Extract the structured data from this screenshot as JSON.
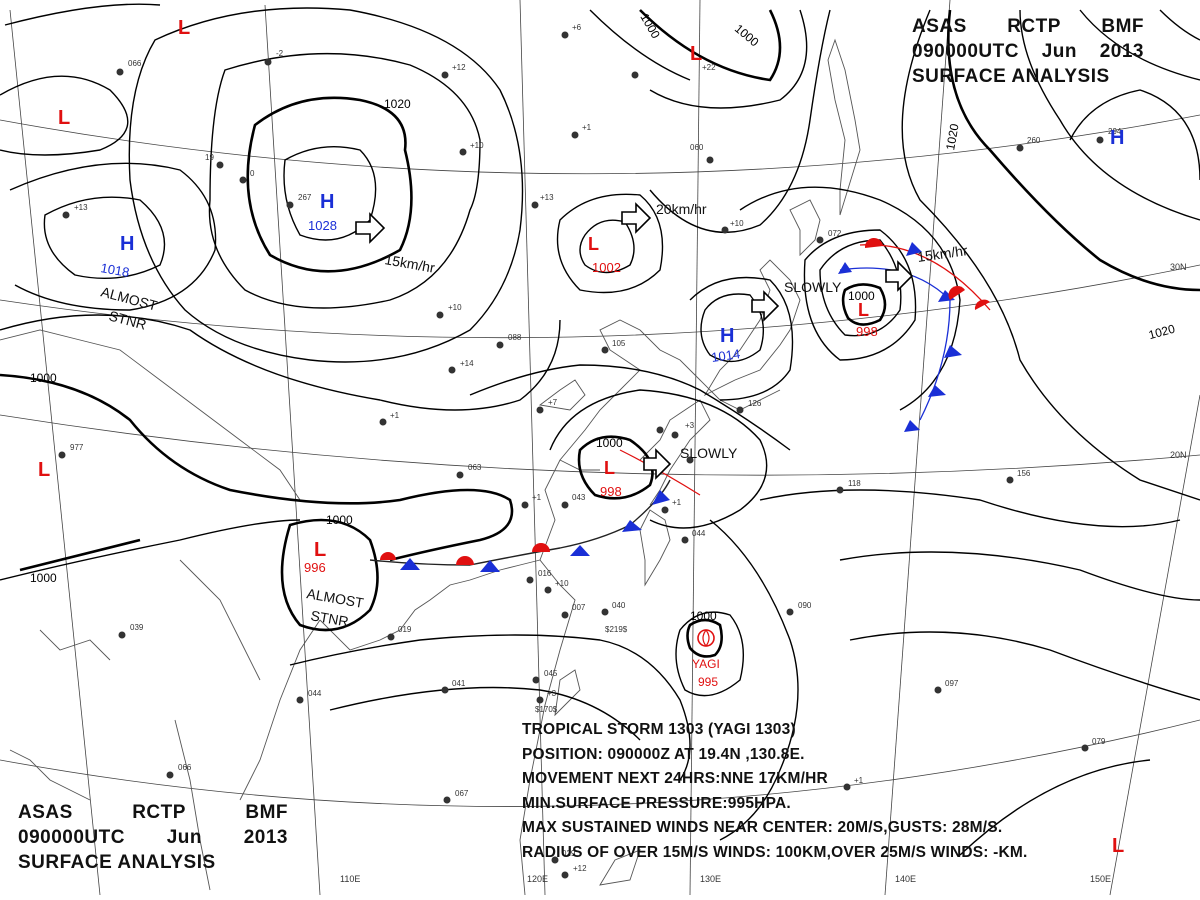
{
  "header": {
    "agency_codes": [
      "ASAS",
      "RCTP",
      "BMF"
    ],
    "time": "090000UTC",
    "month": "Jun",
    "year": "2013",
    "title": "SURFACE ANALYSIS"
  },
  "lat_labels": [
    "30N",
    "20N"
  ],
  "lon_labels": [
    "110E",
    "120E",
    "130E",
    "140E",
    "150E"
  ],
  "pressure_centers": [
    {
      "type": "L",
      "value": ""
    },
    {
      "type": "L",
      "value": ""
    },
    {
      "type": "L",
      "value": ""
    },
    {
      "type": "L",
      "value": ""
    },
    {
      "type": "L",
      "value": ""
    },
    {
      "type": "H",
      "value": "1028"
    },
    {
      "type": "H",
      "value": "1018"
    },
    {
      "type": "L",
      "value": "1002"
    },
    {
      "type": "H",
      "value": "1014"
    },
    {
      "type": "L",
      "value": "998"
    },
    {
      "type": "L",
      "value": "998"
    },
    {
      "type": "L",
      "value": "996"
    },
    {
      "type": "H",
      "value": ""
    },
    {
      "type": "L",
      "value": ""
    }
  ],
  "isobar_labels": [
    "1020",
    "1020",
    "1020",
    "1000",
    "1000",
    "1000",
    "1000",
    "1000",
    "1000",
    "1000",
    "1000"
  ],
  "motion_labels": [
    "15km/hr",
    "20km/hr",
    "15km/hr",
    "SLOWLY",
    "SLOWLY",
    "ALMOST",
    "STNR",
    "ALMOST",
    "STNR"
  ],
  "typhoon": {
    "name": "YAGI",
    "value": "995"
  },
  "storm_info": {
    "line1": "TROPICAL STORM 1303 (YAGI 1303)",
    "line2": "POSITION: 090000Z AT 19.4N ,130.8E.",
    "line3": "MOVEMENT NEXT 24HRS:NNE 17KM/HR",
    "line4": "MIN.SURFACE PRESSURE:995HPA.",
    "line5": "MAX SUSTAINED WINDS NEAR CENTER: 20M/S,GUSTS: 28M/S.",
    "line6": "RADIUS OF OVER 15M/S WINDS: 100KM,OVER 25M/S WINDS: -KM."
  },
  "colors": {
    "low": "#e01010",
    "high": "#1a2fd6",
    "isobar": "#000000",
    "station": "#333333",
    "grid": "#555555"
  }
}
